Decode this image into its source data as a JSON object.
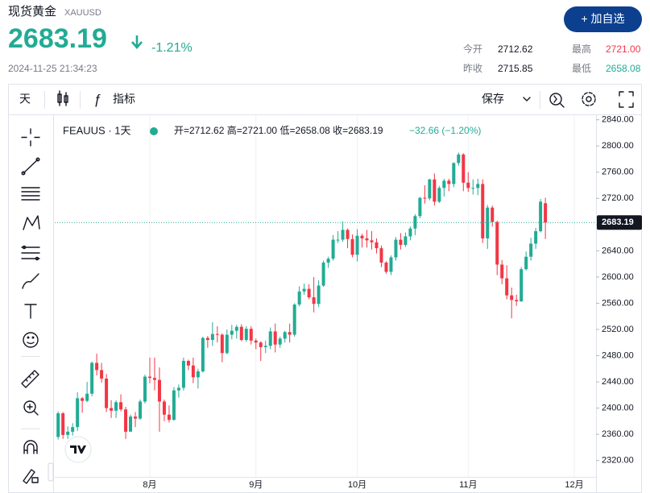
{
  "header": {
    "name": "现货黄金",
    "symbol": "XAUUSD",
    "price": "2683.19",
    "change": "-1.21%",
    "time": "2024-11-25 21:34:23",
    "button": "+ 加自选",
    "stats": [
      {
        "label": "今开",
        "value": "2712.62"
      },
      {
        "label": "最高",
        "value": "2721.00"
      },
      {
        "label": "昨收",
        "value": "2715.85"
      },
      {
        "label": "最低",
        "value": "2658.08"
      }
    ]
  },
  "toolbar": {
    "interval": "天",
    "indicators": "指标",
    "save": "保存"
  },
  "chart_data": {
    "type": "candlestick",
    "legend_title": "FEAUUS · 1天",
    "legend_ohlc": "开=2712.62 高=2721.00 低=2658.08 收=2683.19",
    "legend_change": "−32.66 (−1.20%)",
    "up_color": "#22ab94",
    "down_color": "#f23645",
    "grid": true,
    "open": [
      2356,
      2392,
      2359,
      2364,
      2371,
      2415,
      2411,
      2422,
      2469,
      2458,
      2445,
      2400,
      2396,
      2409,
      2398,
      2364,
      2387,
      2384,
      2410,
      2448,
      2446,
      2443,
      2410,
      2390,
      2382,
      2427,
      2431,
      2472,
      2465,
      2447,
      2456,
      2507,
      2504,
      2513,
      2512,
      2484,
      2512,
      2518,
      2524,
      2504,
      2521,
      2503,
      2500,
      2493,
      2495,
      2517,
      2497,
      2506,
      2516,
      2512,
      2558,
      2578,
      2582,
      2569,
      2559,
      2587,
      2622,
      2628,
      2657,
      2657,
      2672,
      2658,
      2634,
      2663,
      2659,
      2656,
      2653,
      2644,
      2622,
      2608,
      2630,
      2657,
      2649,
      2662,
      2674,
      2693,
      2721,
      2720,
      2749,
      2715,
      2736,
      2747,
      2742,
      2774,
      2787,
      2744,
      2736,
      2736,
      2742,
      2659,
      2706,
      2684,
      2619,
      2598,
      2572,
      2565,
      2563,
      2612,
      2631,
      2651,
      2670,
      2712.62
    ],
    "high": [
      2395,
      2394,
      2372,
      2377,
      2424,
      2417,
      2440,
      2471,
      2483,
      2469,
      2452,
      2412,
      2412,
      2421,
      2402,
      2390,
      2394,
      2413,
      2451,
      2477,
      2477,
      2462,
      2413,
      2404,
      2432,
      2436,
      2477,
      2474,
      2477,
      2460,
      2509,
      2510,
      2531,
      2525,
      2514,
      2520,
      2527,
      2527,
      2528,
      2525,
      2525,
      2506,
      2502,
      2503,
      2523,
      2529,
      2509,
      2518,
      2529,
      2560,
      2586,
      2590,
      2589,
      2600,
      2595,
      2625,
      2631,
      2664,
      2670,
      2685,
      2674,
      2665,
      2673,
      2666,
      2672,
      2670,
      2659,
      2648,
      2624,
      2633,
      2661,
      2667,
      2668,
      2677,
      2696,
      2722,
      2740,
      2750,
      2758,
      2739,
      2750,
      2750,
      2775,
      2790,
      2789,
      2760,
      2749,
      2750,
      2749,
      2710,
      2709,
      2686,
      2626,
      2618,
      2584,
      2573,
      2615,
      2639,
      2660,
      2675,
      2719,
      2721.0
    ],
    "low": [
      2352,
      2353,
      2353,
      2358,
      2365,
      2393,
      2409,
      2418,
      2450,
      2439,
      2394,
      2385,
      2385,
      2395,
      2353,
      2365,
      2371,
      2382,
      2407,
      2438,
      2427,
      2364,
      2380,
      2378,
      2381,
      2416,
      2427,
      2458,
      2438,
      2430,
      2454,
      2492,
      2495,
      2500,
      2470,
      2482,
      2505,
      2506,
      2502,
      2501,
      2497,
      2490,
      2472,
      2484,
      2490,
      2485,
      2492,
      2500,
      2500,
      2509,
      2555,
      2573,
      2566,
      2546,
      2554,
      2585,
      2614,
      2625,
      2652,
      2654,
      2644,
      2630,
      2624,
      2645,
      2645,
      2642,
      2636,
      2615,
      2605,
      2603,
      2625,
      2642,
      2646,
      2656,
      2664,
      2690,
      2712,
      2717,
      2709,
      2713,
      2723,
      2731,
      2737,
      2770,
      2731,
      2730,
      2726,
      2725,
      2652,
      2643,
      2677,
      2603,
      2589,
      2566,
      2537,
      2556,
      2562,
      2610,
      2625,
      2643,
      2668,
      2658.08
    ],
    "close": [
      2392,
      2359,
      2364,
      2371,
      2415,
      2411,
      2422,
      2469,
      2458,
      2445,
      2400,
      2396,
      2409,
      2398,
      2364,
      2387,
      2384,
      2410,
      2448,
      2446,
      2443,
      2410,
      2390,
      2382,
      2427,
      2431,
      2472,
      2465,
      2447,
      2456,
      2507,
      2504,
      2513,
      2512,
      2484,
      2512,
      2518,
      2524,
      2504,
      2521,
      2503,
      2500,
      2493,
      2495,
      2517,
      2497,
      2506,
      2516,
      2512,
      2558,
      2578,
      2582,
      2569,
      2559,
      2587,
      2622,
      2628,
      2657,
      2657,
      2672,
      2658,
      2634,
      2663,
      2659,
      2656,
      2653,
      2644,
      2622,
      2608,
      2630,
      2657,
      2649,
      2662,
      2674,
      2693,
      2721,
      2720,
      2749,
      2715,
      2736,
      2747,
      2742,
      2774,
      2787,
      2744,
      2736,
      2736,
      2742,
      2659,
      2706,
      2684,
      2619,
      2598,
      2572,
      2565,
      2563,
      2612,
      2631,
      2651,
      2670,
      2715,
      2683.19
    ],
    "last_price": 2683.19,
    "xlim": [
      -0.7,
      111.5
    ],
    "xticks": [
      {
        "value": 19,
        "label": "8月"
      },
      {
        "value": 41,
        "label": "9月"
      },
      {
        "value": 62,
        "label": "10月"
      },
      {
        "value": 85,
        "label": "11月"
      },
      {
        "value": 107,
        "label": "12月"
      }
    ],
    "ylim": [
      2295,
      2847
    ],
    "yticks": [
      {
        "value": 2320,
        "label": "2320.00"
      },
      {
        "value": 2360,
        "label": "2360.00"
      },
      {
        "value": 2400,
        "label": "2400.00"
      },
      {
        "value": 2440,
        "label": "2440.00"
      },
      {
        "value": 2480,
        "label": "2480.00"
      },
      {
        "value": 2520,
        "label": "2520.00"
      },
      {
        "value": 2560,
        "label": "2560.00"
      },
      {
        "value": 2600,
        "label": "2600.00"
      },
      {
        "value": 2640,
        "label": "2640.00"
      },
      {
        "value": 2680,
        "label": "2680.00"
      },
      {
        "value": 2720,
        "label": "2720.00"
      },
      {
        "value": 2760,
        "label": "2760.00"
      },
      {
        "value": 2800,
        "label": "2800.00"
      },
      {
        "value": 2840,
        "label": "2840.00"
      }
    ]
  }
}
